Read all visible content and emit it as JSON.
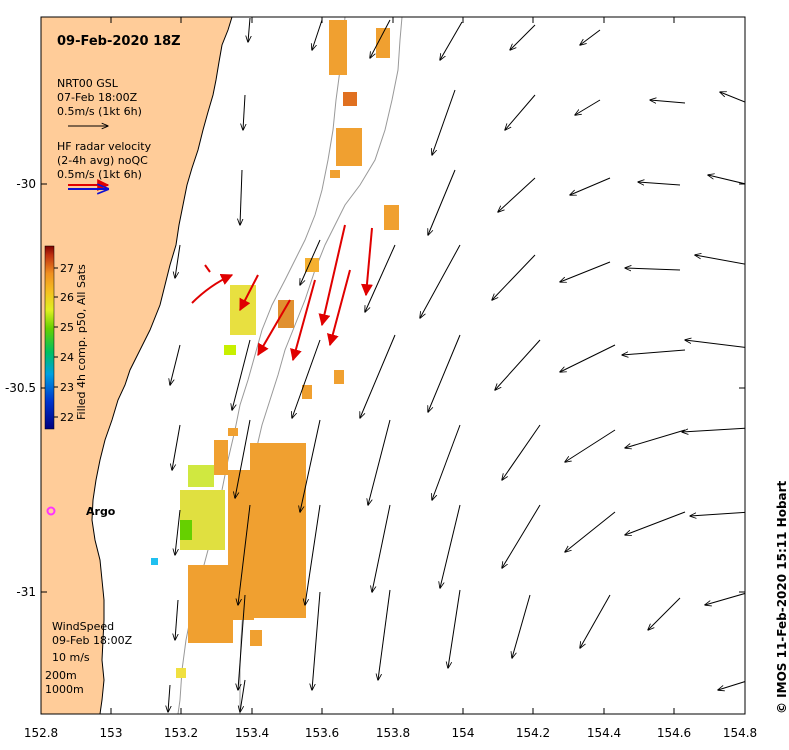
{
  "map": {
    "title": "09-Feb-2020 18Z",
    "x_ticks": [
      "152.8",
      "153",
      "153.2",
      "153.4",
      "153.6",
      "153.8",
      "154",
      "154.2",
      "154.4",
      "154.6",
      "154.8"
    ],
    "y_ticks": [
      "-30",
      "-30.5",
      "-31"
    ],
    "land_color": "#FFCC99",
    "coast_color": "#000000"
  },
  "legend": {
    "gsl_line1": "NRT00 GSL",
    "gsl_line2": "07-Feb 18:00Z",
    "gsl_line3": "0.5m/s (1kt 6h)",
    "radar_line1": "HF radar velocity",
    "radar_line2": "(2-4h avg) noQC",
    "radar_line3": "0.5m/s (1kt 6h)",
    "wind_line1": "WindSpeed",
    "wind_line2": "09-Feb 18:00Z",
    "wind_line3": "10 m/s",
    "depth_line1": "200m",
    "depth_line2": "1000m"
  },
  "colorbar": {
    "label": "Filled 4h comp. p50, All Sats",
    "ticks": [
      "27",
      "26",
      "25",
      "24",
      "23",
      "22"
    ]
  },
  "argo": {
    "label": "Argo",
    "color": "#FF33FF"
  },
  "credit": "© IMOS 11-Feb-2020 15:11 Hobart"
}
